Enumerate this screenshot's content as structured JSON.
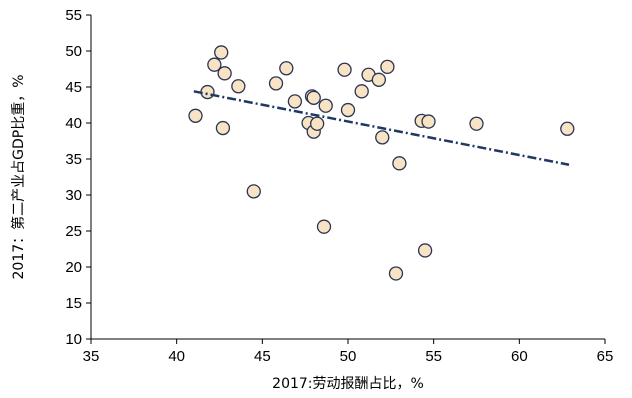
{
  "chart_data": {
    "type": "scatter",
    "xlabel": "2017:劳动报酬占比，%",
    "ylabel": "2017：第二产业占GDP比重，%",
    "xlim": [
      35,
      65
    ],
    "ylim": [
      10,
      55
    ],
    "x_ticks": [
      "35",
      "40",
      "45",
      "50",
      "55",
      "60",
      "65"
    ],
    "y_ticks": [
      "10",
      "15",
      "20",
      "25",
      "30",
      "35",
      "40",
      "45",
      "50",
      "55"
    ],
    "grid": false,
    "points": [
      {
        "x": 41.1,
        "y": 41.0
      },
      {
        "x": 41.8,
        "y": 44.3
      },
      {
        "x": 42.2,
        "y": 48.1
      },
      {
        "x": 42.6,
        "y": 49.8
      },
      {
        "x": 42.8,
        "y": 46.9
      },
      {
        "x": 42.7,
        "y": 39.3
      },
      {
        "x": 43.6,
        "y": 45.1
      },
      {
        "x": 44.5,
        "y": 30.5
      },
      {
        "x": 45.8,
        "y": 45.5
      },
      {
        "x": 46.4,
        "y": 47.6
      },
      {
        "x": 46.9,
        "y": 43.0
      },
      {
        "x": 47.7,
        "y": 40.0
      },
      {
        "x": 47.9,
        "y": 43.7
      },
      {
        "x": 48.0,
        "y": 43.5
      },
      {
        "x": 48.0,
        "y": 38.8
      },
      {
        "x": 48.2,
        "y": 39.9
      },
      {
        "x": 48.7,
        "y": 42.4
      },
      {
        "x": 48.6,
        "y": 25.6
      },
      {
        "x": 49.8,
        "y": 47.4
      },
      {
        "x": 50.0,
        "y": 41.8
      },
      {
        "x": 50.8,
        "y": 44.4
      },
      {
        "x": 51.2,
        "y": 46.7
      },
      {
        "x": 51.8,
        "y": 46.0
      },
      {
        "x": 52.3,
        "y": 47.8
      },
      {
        "x": 52.0,
        "y": 38.0
      },
      {
        "x": 53.0,
        "y": 34.4
      },
      {
        "x": 52.8,
        "y": 19.1
      },
      {
        "x": 54.3,
        "y": 40.3
      },
      {
        "x": 54.7,
        "y": 40.2
      },
      {
        "x": 54.5,
        "y": 22.3
      },
      {
        "x": 57.5,
        "y": 39.9
      },
      {
        "x": 62.8,
        "y": 39.2
      }
    ],
    "trendline": {
      "x": [
        41.0,
        62.9
      ],
      "y": [
        44.4,
        34.2
      ]
    },
    "colors": {
      "point_fill": "#f8e3c4",
      "point_edge": "#2a3553",
      "trendline": "#1f3864"
    }
  }
}
